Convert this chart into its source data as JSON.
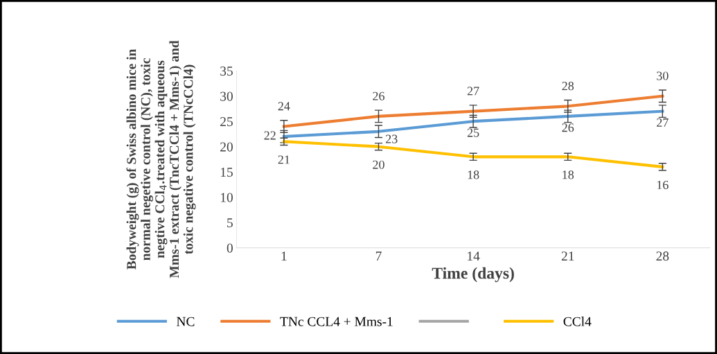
{
  "chart_data": {
    "type": "line",
    "xlabel": "Time (days)",
    "ylabel": "Bodyweight (g) of Swiss albino mice in normal negetive control (NC), toxic negtive CCl$_{4}$.treated with aqueous Mms-1 extract (TncTCCl4 + Mms-1) and toxic negative control (TNcCCl4)",
    "categories": [
      "1",
      "7",
      "14",
      "21",
      "28"
    ],
    "series": [
      {
        "name": "NC",
        "color": "#5b9bd5",
        "values": [
          22,
          23,
          25,
          26,
          27
        ],
        "errors": [
          1.2,
          1.2,
          1.2,
          1.2,
          1.2
        ]
      },
      {
        "name": "TNc CCL4 + Mms-1",
        "color": "#ed7d31",
        "values": [
          24,
          26,
          27,
          28,
          30
        ],
        "errors": [
          1.2,
          1.2,
          1.2,
          1.2,
          1.2
        ]
      },
      {
        "color": "#a5a5a5",
        "values": [
          null,
          null,
          null,
          null,
          null
        ]
      },
      {
        "name": "CCl4",
        "color": "#ffc000",
        "values": [
          21,
          20,
          18,
          18,
          16
        ],
        "errors": [
          0.7,
          0.7,
          0.7,
          0.7,
          0.7
        ]
      }
    ],
    "ylim": [
      0,
      35
    ],
    "yticks": [
      0,
      5,
      10,
      15,
      20,
      25,
      30,
      35
    ],
    "data_labels": true,
    "legend": "bottom",
    "grid": false,
    "marker": "none",
    "line_style": "solid"
  }
}
